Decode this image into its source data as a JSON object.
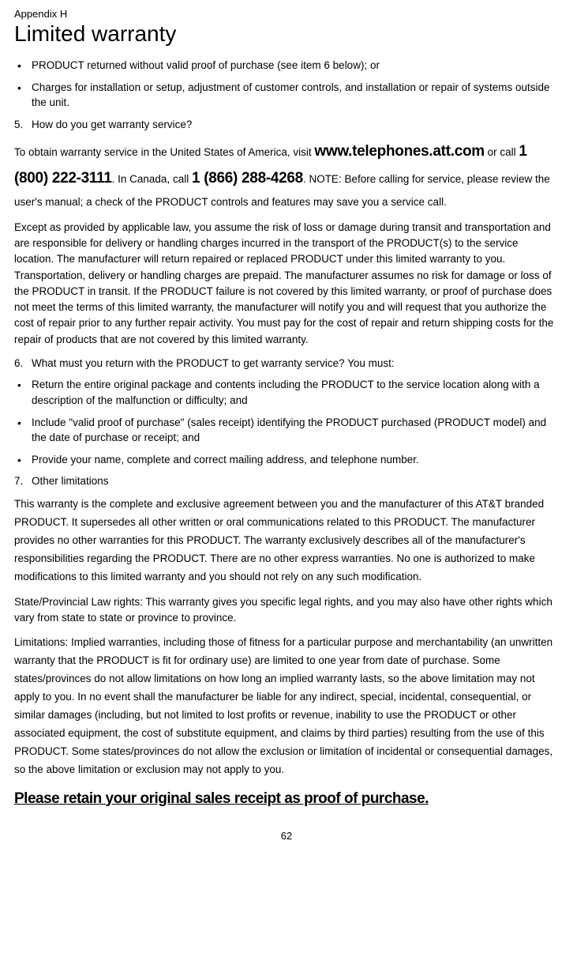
{
  "appendix_label": "Appendix H",
  "title": "Limited warranty",
  "bullets_top": [
    "PRODUCT returned without valid proof of purchase (see item 6 below); or",
    "Charges for installation or setup, adjustment of customer controls, and installation or repair of systems outside the unit."
  ],
  "item5_num": "5.",
  "item5_text": "How do you get warranty service?",
  "contact_intro": "To obtain warranty service in the United States of America, visit ",
  "website": "www.telephones.att.com",
  "or_call": " or call ",
  "phone_us": "1 (800) 222-3111",
  "in_canada": ". In Canada, call ",
  "phone_ca": "1 (866) 288-4268",
  "contact_rest": ". NOTE: Before calling for service, please review the user's manual; a check of the PRODUCT controls and features may save you a service call.",
  "para_except": "Except as provided by applicable law, you assume the risk of loss or damage during transit and transportation and are responsible for delivery or handling charges incurred in the transport of the PRODUCT(s) to the service location. The manufacturer will return repaired or replaced PRODUCT under this limited warranty to you. Transportation, delivery or handling charges are prepaid. The manufacturer assumes no risk for damage or loss of the PRODUCT in transit. If the PRODUCT failure is not covered by this limited warranty, or proof of purchase does not meet the terms of this limited warranty, the manufacturer will notify you and will request that you authorize the cost of repair prior to any further repair activity. You must pay for the cost of repair and return shipping costs for the repair of products that are not covered by this limited warranty.",
  "item6_num": "6.",
  "item6_text": "What must you return with the PRODUCT to get warranty service? You must:",
  "bullets_6": [
    "Return the entire original package and contents including the PRODUCT to the service location along with a description of the malfunction or difficulty; and",
    "Include \"valid proof of purchase\" (sales receipt) identifying the PRODUCT purchased (PRODUCT model) and the date of purchase or receipt; and",
    "Provide your name, complete and correct mailing address, and telephone number."
  ],
  "item7_num": "7.",
  "item7_text": "Other limitations",
  "para_warranty": "This warranty is the complete and exclusive agreement between you and the manufacturer of this AT&T branded PRODUCT. It supersedes all other written or oral communications related to this PRODUCT. The manufacturer provides no other warranties for this PRODUCT. The warranty exclusively describes all of the manufacturer's responsibilities regarding the PRODUCT. There are no other express warranties. No one is authorized to make modifications to this limited warranty and you should not rely on any such modification.",
  "para_state": "State/Provincial Law rights: This warranty gives you specific legal rights, and you may also have other rights which vary from state to state or province to province.",
  "para_limitations": "Limitations: Implied warranties, including those of fitness for a particular purpose and merchantability (an unwritten warranty that the PRODUCT is fit for ordinary use) are limited to one year from date of purchase. Some states/provinces do not allow limitations on how long an implied warranty lasts, so the above limitation may not apply to you. In no event shall the manufacturer be liable for any indirect, special, incidental, consequential, or similar damages (including, but not limited to lost profits or revenue, inability to use the PRODUCT or other associated equipment, the cost of substitute equipment, and claims by third parties) resulting from the use of this PRODUCT. Some states/provinces do not allow the exclusion or limitation of incidental or consequential damages, so the above limitation or exclusion may not apply to you.",
  "retain": "Please retain your original sales receipt as proof of purchase.",
  "page_number": "62"
}
